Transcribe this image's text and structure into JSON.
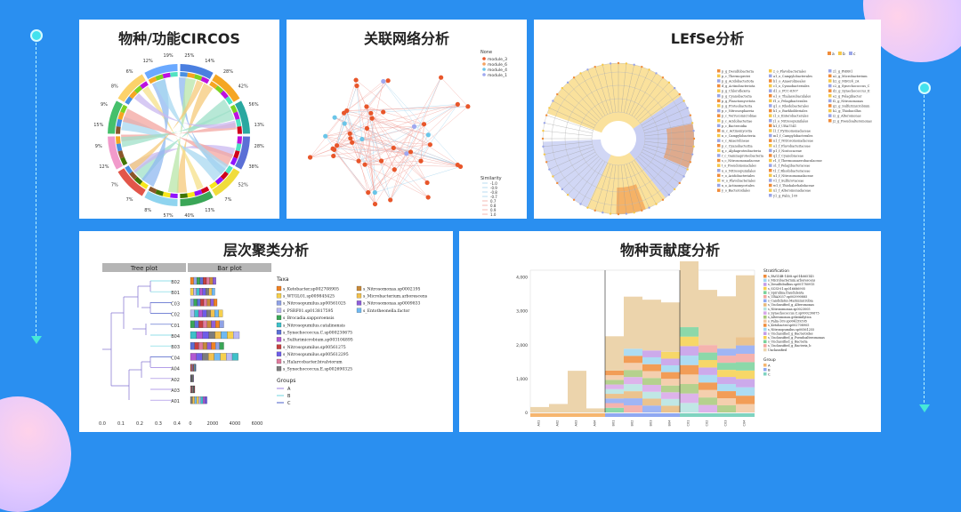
{
  "panels": {
    "circos": {
      "title": "物种/功能CIRCOS"
    },
    "network": {
      "title": "关联网络分析"
    },
    "lefse": {
      "title": "LEfSe分析"
    },
    "cluster": {
      "title": "层次聚类分析"
    },
    "contrib": {
      "title": "物种贡献度分析"
    }
  },
  "colors": {
    "background": "#2a8ff0",
    "accent": "#43e2ee"
  },
  "icons": [
    "arrow-down-icon",
    "timeline-dot-icon"
  ],
  "chart_data": [
    {
      "type": "other",
      "name": "circos",
      "percent_labels": [
        "25%",
        "14%",
        "28%",
        "42%",
        "56%",
        "13%",
        "28%",
        "38%",
        "52%",
        "7%",
        "13%",
        "40%",
        "57%",
        "8%",
        "7%",
        "7%",
        "12%",
        "9%",
        "15%",
        "9%",
        "8%",
        "6%",
        "12%",
        "19%"
      ],
      "ring_colors": [
        "#4a90e2",
        "#f5a623",
        "#7ed321",
        "#bd10e0",
        "#50e3c2",
        "#d0021b",
        "#9013fe",
        "#f8e71c",
        "#417505",
        "#8b572a"
      ]
    },
    {
      "type": "scatter",
      "name": "network",
      "legend_title": "None",
      "legend_entries": [
        "module_3",
        "module_6",
        "module_4",
        "module_1"
      ],
      "legend_colors": [
        "#e8562a",
        "#f4a261",
        "#6ac5e8",
        "#9fa8f0"
      ],
      "similarity_title": "Similarity",
      "similarity_values": [
        "-1.0",
        "-0.9",
        "-0.8",
        "-0.7",
        "0.7",
        "0.8",
        "0.9",
        "1.0"
      ]
    },
    {
      "type": "other",
      "name": "lefse",
      "legend_groups": [
        "a",
        "b",
        "c"
      ],
      "legend_group_colors": [
        "#f08c3a",
        "#f6c84a",
        "#9aa6e8"
      ],
      "taxa_col1": [
        "p_g_Desulfobacteria",
        "p_c_Thermoprotei",
        "p_g_Acidobacteriota",
        "d_g_Actinobacteriota",
        "p_g_Chloroflexota",
        "p_g_Cyanobacteria",
        "p_g_Planctomycetota",
        "p_g_Proteobacteria",
        "p_c_Nitrososphaeria",
        "p_c_Verrucomicrobiae",
        "p_c_Acidobacteriae",
        "p_c_Bacteroidia",
        "m_c_Actinomycetia",
        "n_c_Campylobacteria",
        "o_c_Anaerolineae",
        "p_c_Cyanobacteriia",
        "q_c_Alphaproteobacteria",
        "r_c_Gammaproteobacteria",
        "s_c_Nitrosomonadaceae",
        "t_o_Pseudomonadales",
        "u_o_Nitrosopumilales",
        "v_o_Acidobacteriales",
        "w_o_Flavobacteriales",
        "x_o_Actinomycetales",
        "y_o_Bacteroidales"
      ],
      "taxa_col2": [
        "z_o_Flavobacteriales",
        "a1_o_Campylobacterales",
        "b1_o_Anaerolineales",
        "c1_o_Cyanobacteriales",
        "d1_o_PCC-6307",
        "e1_o_Thalassobaculales",
        "f1_o_Pelagibacterales",
        "g1_o_Rhodobacterales",
        "h1_o_Burkholderiales",
        "i1_o_Enterobacterales",
        "j1_o_Nitrosopumilales",
        "k1_f_UBA7541",
        "l1_f_Pyrinomonadaceae",
        "m1_f_Campylobacterales",
        "n1_f_Nitrosomonadaceae",
        "o1_f_Flavobacteriaceae",
        "p1_f_Nostocaceae",
        "q1_f_Cyanobiaceae",
        "r1_f_Thermoanaerobaculaceae",
        "s1_f_Pelagibacteraceae",
        "t1_f_Rhodobacteraceae",
        "u1_f_Nitrosomonadaceae",
        "v1_f_Sulfurovaceae",
        "w1_f_Thiohalorhabdaceae",
        "x1_f_Alteromonadaceae",
        "y1_g_Palm_109"
      ],
      "taxa_col3": [
        "z1_g_PHR01",
        "a2_g_Microbacterium",
        "b2_g_MS024_2A",
        "c2_g_Synechococcus_C",
        "d2_g_Synechococcus_E",
        "e2_g_Pelagibacter",
        "f2_g_Nitrosomonas",
        "g2_g_Sulfurimicrobium",
        "h2_g_Thiobacillus",
        "i2_g_Alteromonas",
        "j2_g_Pseudoalteromonas"
      ]
    },
    {
      "type": "bar",
      "name": "cluster",
      "tree_header": "Tree plot",
      "bar_header": "Bar plot",
      "samples": [
        "B02",
        "B01",
        "C03",
        "C02",
        "C01",
        "B04",
        "B03",
        "C04",
        "A04",
        "A02",
        "A03",
        "A01"
      ],
      "totals": [
        2300,
        2200,
        2400,
        2900,
        3000,
        4400,
        3000,
        4300,
        500,
        300,
        400,
        1500
      ],
      "tree_axis_ticks": [
        "0.0",
        "0.1",
        "0.2",
        "0.3",
        "0.4"
      ],
      "bar_axis_ticks": [
        "0",
        "2000",
        "4000",
        "6000"
      ],
      "xlim": [
        0,
        6000
      ],
      "taxa_title": "Taxa",
      "taxa": [
        "s_Ketobacter.sp002708905",
        "s_WTGL01.sp009845425",
        "s_Nitrosopumilus.sp00561025",
        "s_PSRF01.sp013817595",
        "s_Brocadia.sapporoensis",
        "s_Nitrosopumilus.catalinensis",
        "s_Synechococcus.C.sp000230675",
        "s_Sulfurimicrobium.sp003104895",
        "s_Nitrosopumilus.sp00561275",
        "s_Nitrosopumilus.sp005612295",
        "s_Halarcobacter.bivalviorum",
        "s_Synechococcus.E.sp002690325",
        "s_Nitrosomonas.sp0002195",
        "s_Microbacterium.arborescens",
        "s_Nitrosomonas.sp0009833",
        "s_Entotheonella.factor"
      ],
      "taxa_colors": [
        "#f08224",
        "#f6d04d",
        "#8fa2e6",
        "#b9b9f3",
        "#3aa657",
        "#3ec1c9",
        "#5b6fd6",
        "#b257d1",
        "#c64040",
        "#6e5ee8",
        "#e07b9e",
        "#7c7c7c",
        "#c88a3a",
        "#f2c14e",
        "#8e5fd9",
        "#6fb9f2"
      ],
      "groups_title": "Groups",
      "groups": [
        "A",
        "B",
        "C"
      ],
      "group_colors": [
        "#9b7fe0",
        "#6fd4e0",
        "#4a5fc8"
      ]
    },
    {
      "type": "bar",
      "name": "contrib",
      "legend_title": "Stratification",
      "legend_entries": [
        "s_PAG14B-1408.sp014665145",
        "s_Microbacterium.arborescens",
        "s_Desulfobulbus.sp001780915",
        "s_SCSI-01.sp016686905",
        "s_Spirulina.fraudulenta",
        "s_UBA3037.sp003990885",
        "s_Candidatus.Marinimicrobia",
        "s_Unclassified_g_Alteromonas",
        "s_Nitrosomonas.sp0023005",
        "s_Synechococcus.C.sp000230675",
        "s_Alteromonas.gelatinilytica",
        "s_Palm-109.sp004159395",
        "s_Ketobacter.sp002708905",
        "s_Nitrosopumilus.sp00561255",
        "s_Unclassified_g_Bacteroides",
        "s_Unclassified_g_Pseudoalteromonas",
        "s_Unclassified_g_Bacteria",
        "s_Unclassified_g_Bacteria_b",
        "Unclassified"
      ],
      "group_title": "Group",
      "groups": [
        "A",
        "B",
        "C"
      ],
      "group_colors": [
        "#f6b66f",
        "#8fa8f2",
        "#7fd3c0"
      ],
      "y_ticks": [
        "0",
        "1,000",
        "2,000",
        "3,000",
        "4,000"
      ],
      "ylim": [
        0,
        4200
      ],
      "samples": [
        "A01",
        "A02",
        "A03",
        "A04",
        "B01",
        "B02",
        "B03",
        "B04",
        "C01",
        "C02",
        "C03",
        "C04"
      ],
      "totals": [
        160,
        250,
        1230,
        120,
        2250,
        3420,
        3330,
        3250,
        4580,
        3620,
        3430,
        4050
      ]
    }
  ]
}
